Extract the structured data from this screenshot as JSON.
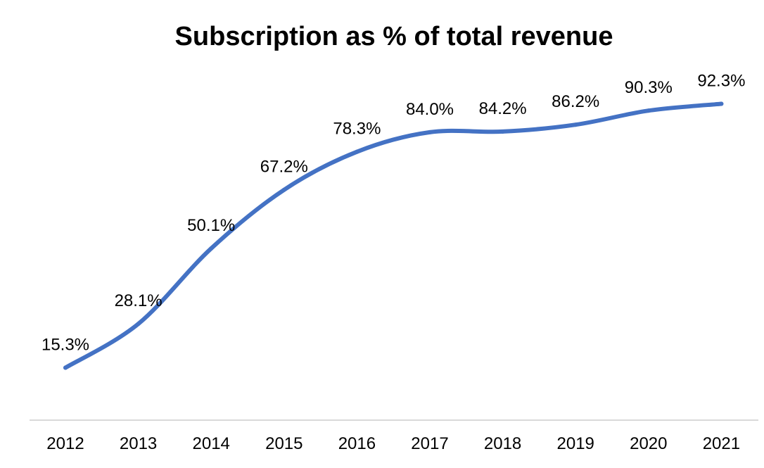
{
  "chart_data": {
    "type": "line",
    "title": "Subscription as % of total revenue",
    "xlabel": "",
    "ylabel": "",
    "categories": [
      "2012",
      "2013",
      "2014",
      "2015",
      "2016",
      "2017",
      "2018",
      "2019",
      "2020",
      "2021"
    ],
    "series": [
      {
        "name": "Subscription as % of total revenue",
        "values": [
          15.3,
          28.1,
          50.1,
          67.2,
          78.3,
          84.0,
          84.2,
          86.2,
          90.3,
          92.3
        ],
        "labels": [
          "15.3%",
          "28.1%",
          "50.1%",
          "67.2%",
          "78.3%",
          "84.0%",
          "84.2%",
          "86.2%",
          "90.3%",
          "92.3%"
        ],
        "color": "#4472C4",
        "smooth": true
      }
    ],
    "ylim": [
      0,
      100
    ],
    "grid": false,
    "legend": "none",
    "axis_color": "#D9D9D9"
  }
}
